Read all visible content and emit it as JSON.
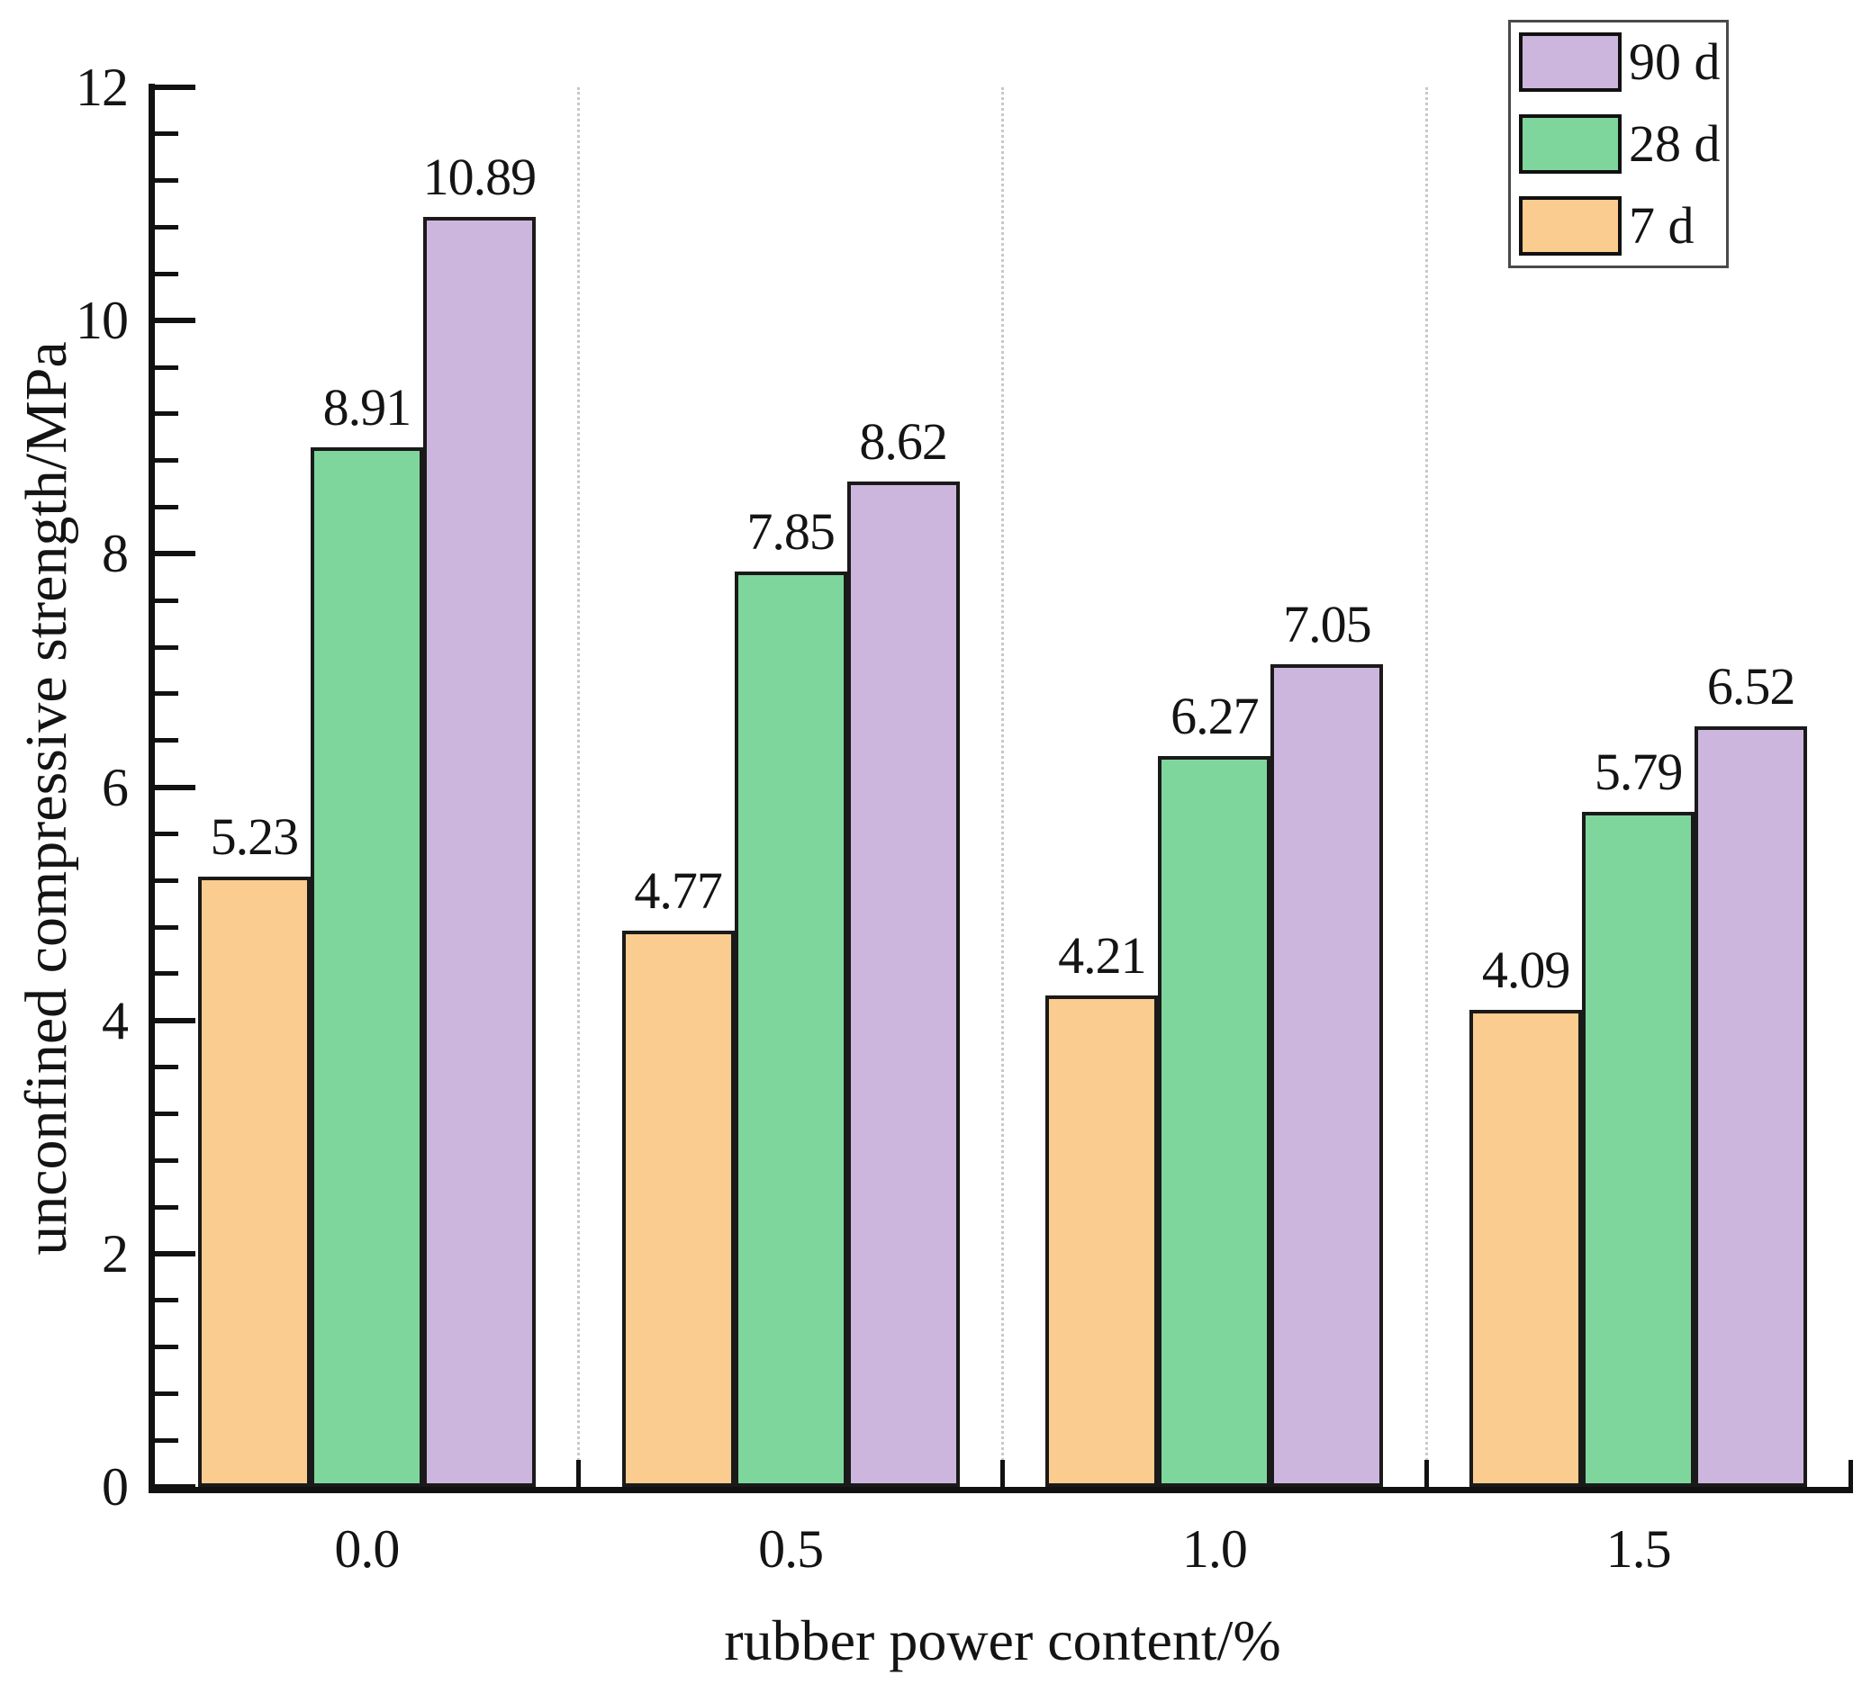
{
  "chart_data": {
    "type": "bar",
    "title": "",
    "xlabel": "rubber power content/%",
    "ylabel": "unconfined compressive strength/MPa",
    "categories": [
      "0.0",
      "0.5",
      "1.0",
      "1.5"
    ],
    "series": [
      {
        "name": "7 d",
        "color": "#FBCC8F",
        "values": [
          5.23,
          4.77,
          4.21,
          4.09
        ]
      },
      {
        "name": "28 d",
        "color": "#7FD69D",
        "values": [
          8.91,
          7.85,
          6.27,
          5.79
        ]
      },
      {
        "name": "90 d",
        "color": "#CDB6DD",
        "values": [
          10.89,
          8.62,
          7.05,
          6.52
        ]
      }
    ],
    "value_labels": [
      "5.23",
      "8.91",
      "10.89",
      "4.77",
      "7.85",
      "8.62",
      "4.21",
      "6.27",
      "7.05",
      "4.09",
      "5.79",
      "6.52"
    ],
    "ylim": [
      0,
      12
    ],
    "y_major_ticks": [
      0,
      2,
      4,
      6,
      8,
      10,
      12
    ],
    "y_minor_step": 0.4,
    "grid": "vertical dotted lines at group boundaries",
    "legend": {
      "position": "top-right",
      "items": [
        {
          "label": "90 d",
          "color": "#CDB6DD"
        },
        {
          "label": "28 d",
          "color": "#7FD69D"
        },
        {
          "label": "7 d",
          "color": "#FBCC8F"
        }
      ]
    },
    "colors": {
      "bar_edge": "#1a1a1a",
      "gridline": "#c9c9c9",
      "axis": "#111111",
      "text": "#141414",
      "background": "#ffffff"
    }
  }
}
